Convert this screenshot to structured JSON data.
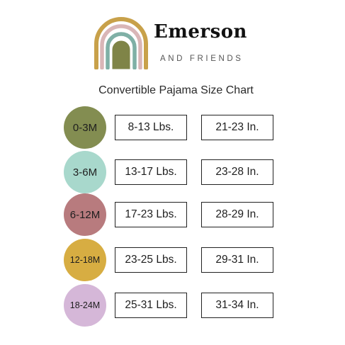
{
  "brand": {
    "name": "Emerson",
    "subtitle": "AND FRIENDS"
  },
  "logo": {
    "icon": "rainbow-icon",
    "arc_colors": [
      "#c8a14a",
      "#d9b6b7",
      "#7fb0a6",
      "#7f8447"
    ]
  },
  "chart": {
    "title": "Convertible Pajama Size Chart",
    "rows": [
      {
        "size": "0-3M",
        "weight": "8-13 Lbs.",
        "length": "21-23 In.",
        "color": "#838d51"
      },
      {
        "size": "3-6M",
        "weight": "13-17 Lbs.",
        "length": "23-28 In.",
        "color": "#a8d8cc"
      },
      {
        "size": "6-12M",
        "weight": "17-23 Lbs.",
        "length": "28-29 In.",
        "color": "#b87b7e"
      },
      {
        "size": "12-18M",
        "weight": "23-25 Lbs.",
        "length": "29-31 In.",
        "color": "#d7ad42"
      },
      {
        "size": "18-24M",
        "weight": "25-31 Lbs.",
        "length": "31-34 In.",
        "color": "#d5b7d8"
      }
    ]
  }
}
